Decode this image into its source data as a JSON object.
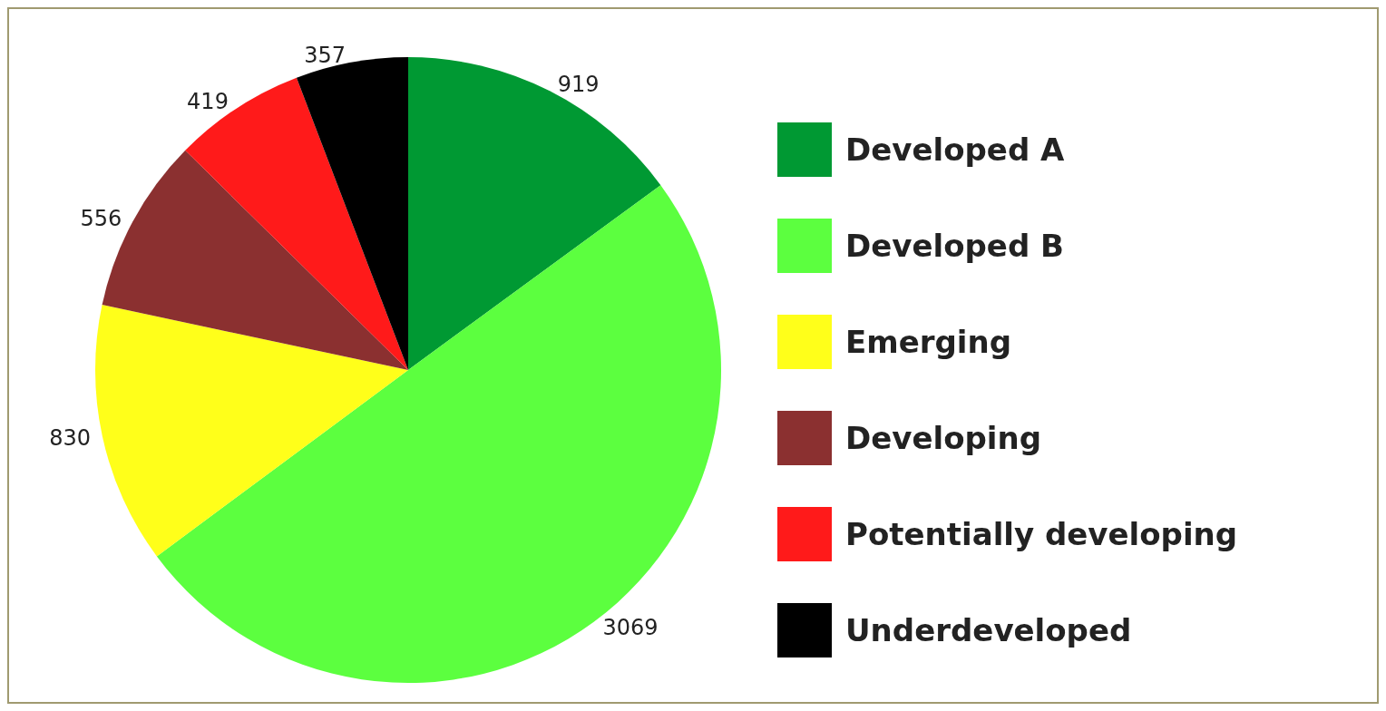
{
  "chart_data": {
    "type": "pie",
    "categories": [
      "Developed A",
      "Developed B",
      "Emerging",
      "Developing",
      "Potentially developing",
      "Underdeveloped"
    ],
    "values": [
      919,
      3069,
      830,
      556,
      419,
      357
    ],
    "colors": [
      "#009933",
      "#5cff3f",
      "#ffff1a",
      "#8b3030",
      "#ff1a1a",
      "#000000"
    ],
    "data_labels": true,
    "legend": "right"
  }
}
